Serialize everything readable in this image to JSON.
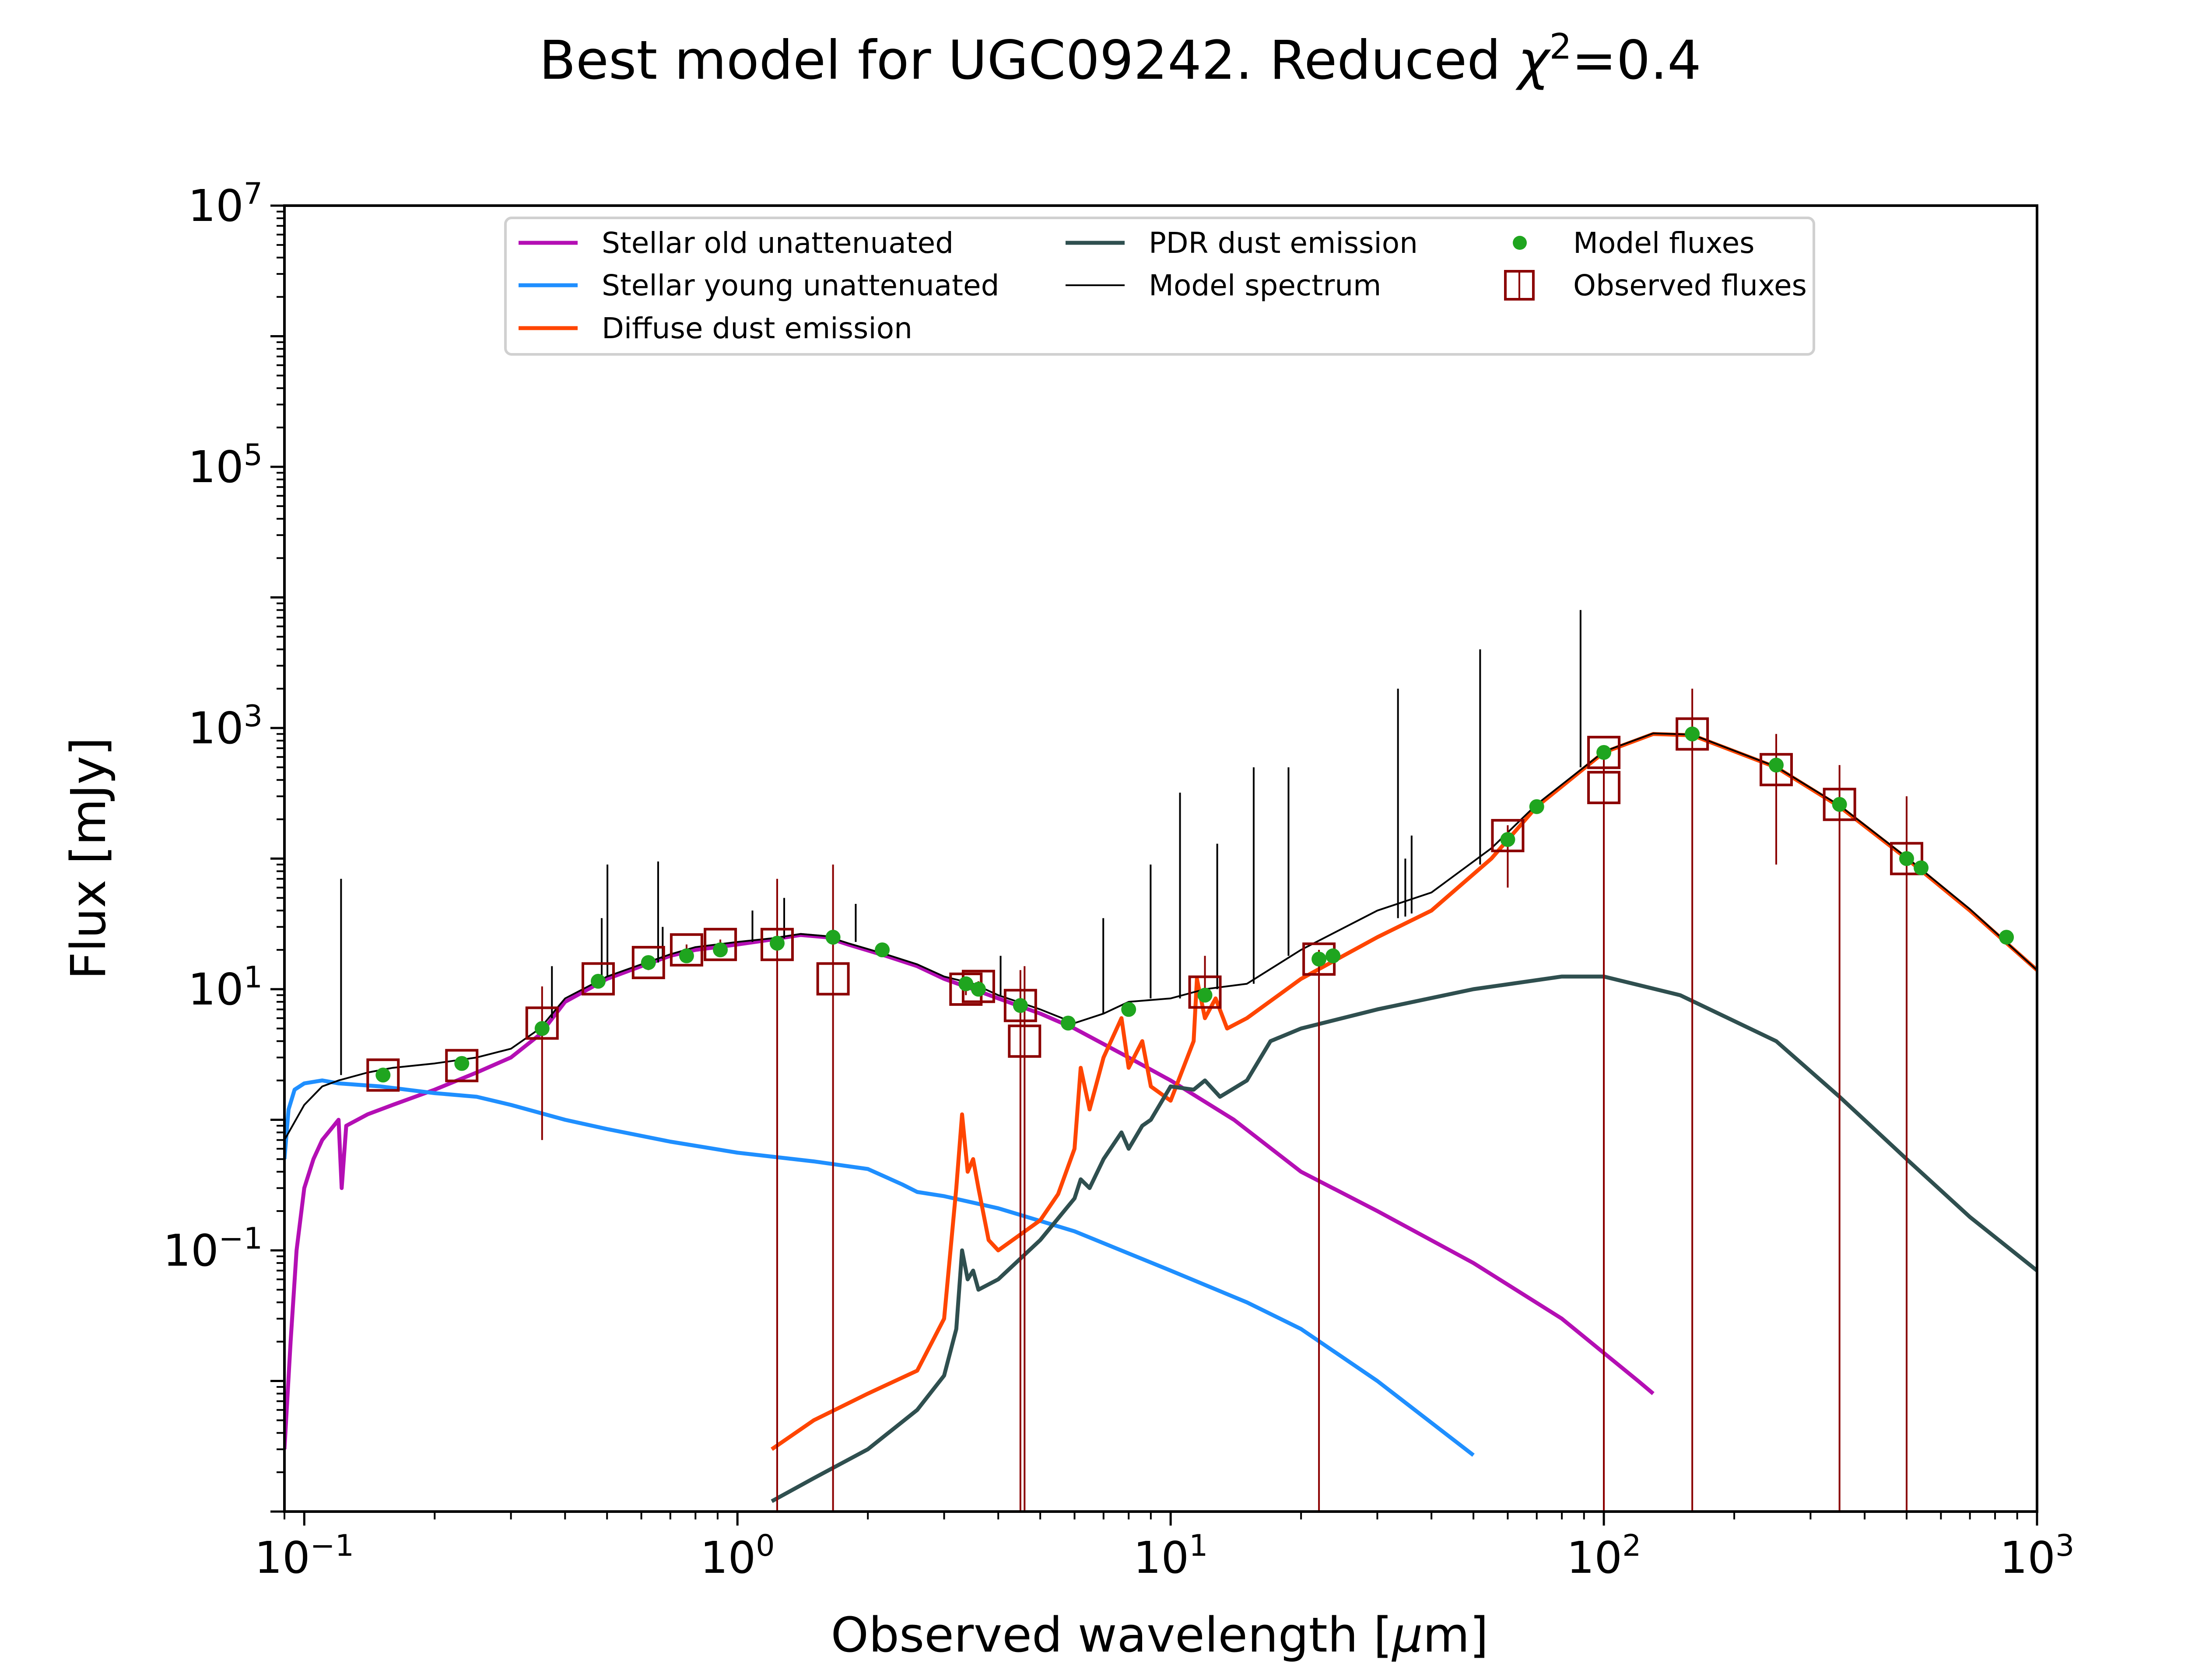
{
  "chart_data": {
    "type": "line",
    "title": "Best model for UGC09242. Reduced χ²=0.4",
    "title_prefix": "Best model for UGC09242. Reduced ",
    "title_chi": "χ",
    "title_exp": "2",
    "title_suffix": "=0.4",
    "xlabel": "Observed wavelength [μm]",
    "xlabel_prefix": "Observed wavelength [",
    "xlabel_mu": "μ",
    "xlabel_suffix": "m]",
    "ylabel": "Flux [mJy]",
    "xscale": "log",
    "yscale": "log",
    "xlim": [
      0.09,
      1000
    ],
    "ylim": [
      0.001,
      10000000
    ],
    "x_ticks": [
      {
        "value": 0.1,
        "base": "10",
        "exp": "−1"
      },
      {
        "value": 1,
        "base": "10",
        "exp": "0"
      },
      {
        "value": 10,
        "base": "10",
        "exp": "1"
      },
      {
        "value": 100,
        "base": "10",
        "exp": "2"
      },
      {
        "value": 1000,
        "base": "10",
        "exp": "3"
      }
    ],
    "y_ticks": [
      {
        "value": 0.1,
        "base": "10",
        "exp": "−1"
      },
      {
        "value": 10,
        "base": "10",
        "exp": "1"
      },
      {
        "value": 1000,
        "base": "10",
        "exp": "3"
      },
      {
        "value": 100000,
        "base": "10",
        "exp": "5"
      },
      {
        "value": 10000000,
        "base": "10",
        "exp": "7"
      }
    ],
    "grid": false,
    "legend_position": "top",
    "series": [
      {
        "name": "Stellar old unattenuated",
        "color": "#b40fb4",
        "points": [
          [
            0.09,
            0.003
          ],
          [
            0.093,
            0.02
          ],
          [
            0.096,
            0.1
          ],
          [
            0.1,
            0.3
          ],
          [
            0.105,
            0.5
          ],
          [
            0.11,
            0.7
          ],
          [
            0.12,
            1.0
          ],
          [
            0.122,
            0.3
          ],
          [
            0.125,
            0.9
          ],
          [
            0.14,
            1.1
          ],
          [
            0.16,
            1.3
          ],
          [
            0.2,
            1.7
          ],
          [
            0.25,
            2.3
          ],
          [
            0.3,
            3.0
          ],
          [
            0.35,
            4.5
          ],
          [
            0.4,
            8.0
          ],
          [
            0.5,
            12
          ],
          [
            0.6,
            15
          ],
          [
            0.7,
            18
          ],
          [
            0.8,
            20
          ],
          [
            1.0,
            22
          ],
          [
            1.2,
            24
          ],
          [
            1.4,
            26
          ],
          [
            1.6,
            25
          ],
          [
            1.8,
            22
          ],
          [
            2.2,
            18
          ],
          [
            2.6,
            15
          ],
          [
            3.0,
            12
          ],
          [
            3.5,
            10
          ],
          [
            4.0,
            8.5
          ],
          [
            5.0,
            6.5
          ],
          [
            6.0,
            5.0
          ],
          [
            8.0,
            3.0
          ],
          [
            10.0,
            2.0
          ],
          [
            14.0,
            1.0
          ],
          [
            20.0,
            0.4
          ],
          [
            30.0,
            0.2
          ],
          [
            50.0,
            0.08
          ],
          [
            80.0,
            0.03
          ],
          [
            120.0,
            0.01
          ],
          [
            130.0,
            0.008
          ]
        ]
      },
      {
        "name": "Stellar young unattenuated",
        "color": "#1f8fff",
        "points": [
          [
            0.09,
            0.5
          ],
          [
            0.092,
            1.2
          ],
          [
            0.095,
            1.7
          ],
          [
            0.1,
            1.9
          ],
          [
            0.11,
            2.0
          ],
          [
            0.12,
            1.9
          ],
          [
            0.15,
            1.8
          ],
          [
            0.2,
            1.6
          ],
          [
            0.25,
            1.5
          ],
          [
            0.3,
            1.3
          ],
          [
            0.4,
            1.0
          ],
          [
            0.5,
            0.85
          ],
          [
            0.7,
            0.68
          ],
          [
            1.0,
            0.56
          ],
          [
            1.5,
            0.48
          ],
          [
            2.0,
            0.42
          ],
          [
            2.4,
            0.32
          ],
          [
            2.6,
            0.28
          ],
          [
            3.0,
            0.26
          ],
          [
            4.0,
            0.21
          ],
          [
            6.0,
            0.14
          ],
          [
            10.0,
            0.07
          ],
          [
            15.0,
            0.04
          ],
          [
            20.0,
            0.025
          ],
          [
            30.0,
            0.01
          ],
          [
            50.0,
            0.0027
          ]
        ]
      },
      {
        "name": "Diffuse dust emission",
        "color": "#ff4500",
        "points": [
          [
            1.2,
            0.003
          ],
          [
            1.5,
            0.005
          ],
          [
            2.0,
            0.008
          ],
          [
            2.6,
            0.012
          ],
          [
            3.0,
            0.03
          ],
          [
            3.2,
            0.3
          ],
          [
            3.3,
            1.1
          ],
          [
            3.4,
            0.4
          ],
          [
            3.5,
            0.5
          ],
          [
            3.6,
            0.3
          ],
          [
            3.8,
            0.12
          ],
          [
            4.0,
            0.1
          ],
          [
            5.0,
            0.17
          ],
          [
            5.5,
            0.27
          ],
          [
            6.0,
            0.6
          ],
          [
            6.2,
            2.5
          ],
          [
            6.5,
            1.2
          ],
          [
            7.0,
            3.0
          ],
          [
            7.7,
            6.0
          ],
          [
            8.0,
            2.5
          ],
          [
            8.6,
            4.0
          ],
          [
            9.0,
            1.8
          ],
          [
            10.0,
            1.4
          ],
          [
            11.3,
            4.0
          ],
          [
            11.5,
            12
          ],
          [
            12.0,
            6.0
          ],
          [
            12.7,
            8.5
          ],
          [
            13.5,
            5.0
          ],
          [
            15.0,
            6.0
          ],
          [
            20.0,
            12
          ],
          [
            30.0,
            25
          ],
          [
            40.0,
            40
          ],
          [
            55.0,
            100
          ],
          [
            70.0,
            250
          ],
          [
            100.0,
            650
          ],
          [
            130.0,
            900
          ],
          [
            160.0,
            880
          ],
          [
            250.0,
            500
          ],
          [
            350.0,
            250
          ],
          [
            500.0,
            100
          ],
          [
            700.0,
            40
          ],
          [
            1000.0,
            14
          ]
        ]
      },
      {
        "name": "PDR dust emission",
        "color": "#2f4f4f",
        "points": [
          [
            1.2,
            0.0012
          ],
          [
            1.5,
            0.0018
          ],
          [
            2.0,
            0.003
          ],
          [
            2.6,
            0.006
          ],
          [
            3.0,
            0.011
          ],
          [
            3.2,
            0.025
          ],
          [
            3.3,
            0.1
          ],
          [
            3.4,
            0.06
          ],
          [
            3.5,
            0.07
          ],
          [
            3.6,
            0.05
          ],
          [
            4.0,
            0.06
          ],
          [
            5.0,
            0.12
          ],
          [
            6.0,
            0.25
          ],
          [
            6.2,
            0.35
          ],
          [
            6.5,
            0.3
          ],
          [
            7.0,
            0.5
          ],
          [
            7.7,
            0.8
          ],
          [
            8.0,
            0.6
          ],
          [
            8.6,
            0.9
          ],
          [
            9.0,
            1.0
          ],
          [
            10.0,
            1.8
          ],
          [
            11.3,
            1.7
          ],
          [
            12.0,
            2.0
          ],
          [
            13.0,
            1.5
          ],
          [
            15.0,
            2.0
          ],
          [
            17.0,
            4.0
          ],
          [
            20.0,
            5.0
          ],
          [
            30.0,
            7.0
          ],
          [
            50.0,
            10
          ],
          [
            80.0,
            12.5
          ],
          [
            100.0,
            12.5
          ],
          [
            150.0,
            9.0
          ],
          [
            250.0,
            4.0
          ],
          [
            350.0,
            1.5
          ],
          [
            500.0,
            0.5
          ],
          [
            700.0,
            0.18
          ],
          [
            1000.0,
            0.07
          ]
        ]
      },
      {
        "name": "Model spectrum",
        "color": "#000000",
        "points": [
          [
            0.09,
            0.7
          ],
          [
            0.1,
            1.3
          ],
          [
            0.11,
            1.8
          ],
          [
            0.12,
            2.0
          ],
          [
            0.14,
            2.3
          ],
          [
            0.16,
            2.5
          ],
          [
            0.2,
            2.7
          ],
          [
            0.25,
            3.0
          ],
          [
            0.3,
            3.5
          ],
          [
            0.35,
            5.0
          ],
          [
            0.4,
            8.5
          ],
          [
            0.5,
            12.5
          ],
          [
            0.6,
            15.5
          ],
          [
            0.7,
            18.5
          ],
          [
            0.8,
            21
          ],
          [
            1.0,
            23
          ],
          [
            1.2,
            24.5
          ],
          [
            1.4,
            26.5
          ],
          [
            1.6,
            25.5
          ],
          [
            1.8,
            22.5
          ],
          [
            2.2,
            18.5
          ],
          [
            2.6,
            15.5
          ],
          [
            3.0,
            12.5
          ],
          [
            3.5,
            11
          ],
          [
            4.0,
            9.0
          ],
          [
            5.0,
            7.0
          ],
          [
            6.0,
            5.5
          ],
          [
            7.0,
            6.5
          ],
          [
            8.0,
            8.0
          ],
          [
            10.0,
            8.5
          ],
          [
            12.0,
            10
          ],
          [
            15.0,
            11
          ],
          [
            20.0,
            20
          ],
          [
            30.0,
            40
          ],
          [
            40.0,
            55
          ],
          [
            55.0,
            120
          ],
          [
            70.0,
            260
          ],
          [
            100.0,
            660
          ],
          [
            130.0,
            910
          ],
          [
            160.0,
            890
          ],
          [
            250.0,
            505
          ],
          [
            350.0,
            255
          ],
          [
            500.0,
            102
          ],
          [
            700.0,
            41
          ],
          [
            1000.0,
            14
          ]
        ]
      }
    ],
    "emission_lines": [
      {
        "x": 0.1216,
        "y_base": 2.2,
        "y_top": 70
      },
      {
        "x": 0.373,
        "y_base": 6.0,
        "y_top": 15
      },
      {
        "x": 0.486,
        "y_base": 12.5,
        "y_top": 35
      },
      {
        "x": 0.501,
        "y_base": 12.5,
        "y_top": 90
      },
      {
        "x": 0.656,
        "y_base": 16,
        "y_top": 95
      },
      {
        "x": 0.672,
        "y_base": 17,
        "y_top": 30
      },
      {
        "x": 1.083,
        "y_base": 23,
        "y_top": 40
      },
      {
        "x": 1.282,
        "y_base": 24.5,
        "y_top": 50
      },
      {
        "x": 1.875,
        "y_base": 23,
        "y_top": 45
      },
      {
        "x": 4.05,
        "y_base": 9,
        "y_top": 18
      },
      {
        "x": 6.99,
        "y_base": 6.5,
        "y_top": 35
      },
      {
        "x": 8.99,
        "y_base": 8.5,
        "y_top": 90
      },
      {
        "x": 10.51,
        "y_base": 8.5,
        "y_top": 320
      },
      {
        "x": 12.81,
        "y_base": 10,
        "y_top": 130
      },
      {
        "x": 15.55,
        "y_base": 11,
        "y_top": 500
      },
      {
        "x": 18.71,
        "y_base": 18,
        "y_top": 500
      },
      {
        "x": 33.48,
        "y_base": 35,
        "y_top": 2000
      },
      {
        "x": 34.81,
        "y_base": 36,
        "y_top": 100
      },
      {
        "x": 36.0,
        "y_base": 38,
        "y_top": 150
      },
      {
        "x": 51.81,
        "y_base": 90,
        "y_top": 4000
      },
      {
        "x": 88.36,
        "y_base": 500,
        "y_top": 8000
      }
    ],
    "model_fluxes": {
      "name": "Model fluxes",
      "color": "#1fa51f",
      "x": [
        0.152,
        0.231,
        0.354,
        0.477,
        0.623,
        0.763,
        0.913,
        1.235,
        1.662,
        2.159,
        3.368,
        3.6,
        4.5,
        5.8,
        8.0,
        12.0,
        22.0,
        23.7,
        60.0,
        70.0,
        100.0,
        160.0,
        250.0,
        350.0,
        500.0,
        540.0,
        850.0
      ],
      "y": [
        2.2,
        2.7,
        5.0,
        11.5,
        16.0,
        18.0,
        20.0,
        22.5,
        25.0,
        20.0,
        11.0,
        10.0,
        7.5,
        5.5,
        7.0,
        9.0,
        17.0,
        18.0,
        140.0,
        250.0,
        650.0,
        900.0,
        520.0,
        260.0,
        100.0,
        85.0,
        25.0
      ]
    },
    "observed_fluxes": {
      "name": "Observed fluxes",
      "color": "#8b0000",
      "x": [
        0.152,
        0.231,
        0.354,
        0.477,
        0.623,
        0.763,
        0.913,
        1.235,
        1.662,
        3.368,
        3.6,
        4.5,
        4.6,
        12.0,
        22.0,
        60.0,
        100.0,
        100.0,
        160.0,
        250.0,
        350.0,
        500.0
      ],
      "y": [
        2.2,
        2.6,
        5.5,
        12.0,
        16.0,
        20.0,
        22.0,
        22.0,
        12.0,
        10.0,
        10.5,
        7.5,
        4.0,
        9.5,
        17.0,
        150.0,
        650.0,
        350.0,
        900.0,
        480.0,
        260.0,
        100.0
      ],
      "err_low": [
        2.0,
        2.4,
        0.7,
        11.0,
        14.0,
        18.0,
        20.0,
        0.001,
        0.001,
        9.0,
        9.5,
        0.001,
        0.001,
        8.0,
        0.001,
        60.0,
        0.001,
        0.001,
        0.001,
        90.0,
        0.001,
        0.001
      ],
      "err_high": [
        2.4,
        2.8,
        10.5,
        13.0,
        18.0,
        22.0,
        24.0,
        70.0,
        90.0,
        11.0,
        11.5,
        14.0,
        15.0,
        18.0,
        20.0,
        180.0,
        720.0,
        720.0,
        2000.0,
        900.0,
        520.0,
        300.0
      ]
    }
  }
}
